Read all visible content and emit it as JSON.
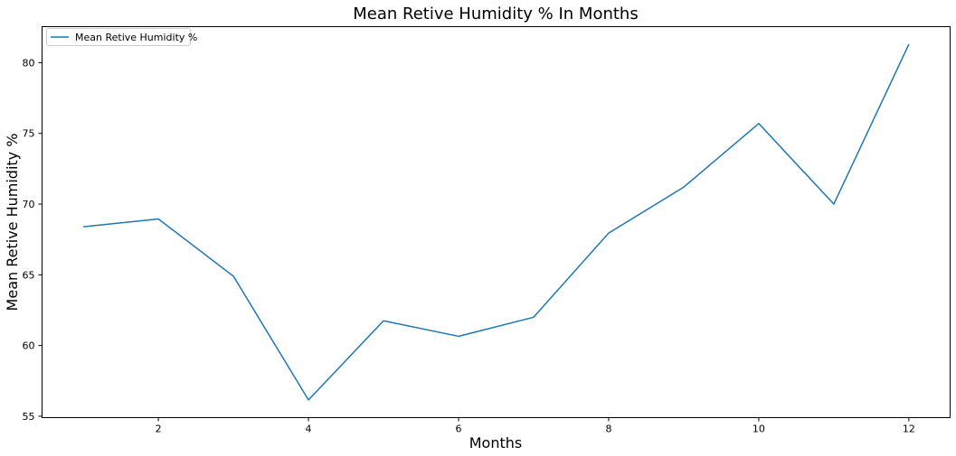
{
  "chart_data": {
    "type": "line",
    "title": "Mean Retive Humidity % In Months",
    "xlabel": "Months",
    "ylabel": "Mean Retive Humidity %",
    "x": [
      1,
      2,
      3,
      4,
      5,
      6,
      7,
      8,
      9,
      10,
      11,
      12
    ],
    "series": [
      {
        "name": "Mean Retive Humidity %",
        "color": "#1f77b4",
        "values": [
          68.4,
          68.95,
          64.9,
          56.15,
          61.75,
          60.65,
          62.0,
          67.95,
          71.2,
          75.7,
          70.0,
          81.3
        ]
      }
    ],
    "xticks": [
      2,
      4,
      6,
      8,
      10,
      12
    ],
    "yticks": [
      55,
      60,
      65,
      70,
      75,
      80
    ],
    "xlim": [
      0.45,
      12.55
    ],
    "ylim": [
      54.9,
      82.55
    ],
    "legend_position": "top-left",
    "grid": false
  }
}
